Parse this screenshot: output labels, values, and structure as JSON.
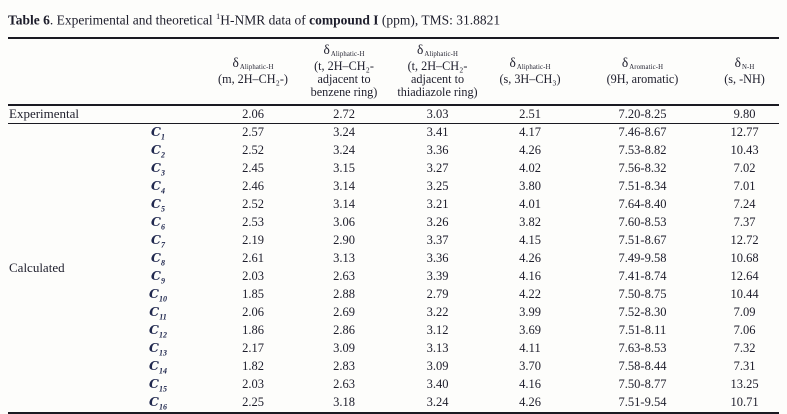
{
  "title": {
    "table_label": "Table 6",
    "segment_1": ". Experimental and theoretical ",
    "superscript": "1",
    "segment_2": "H-NMR data of ",
    "compound": "compound I",
    "segment_3": " (ppm), TMS: 31.8821"
  },
  "colors": {
    "background": "#fdfdfb",
    "text": "#1d1d2b",
    "rule": "#1a1a22",
    "conformer_glyph": "#20284e"
  },
  "table": {
    "row_group_labels": {
      "experimental": "Experimental",
      "calculated": "Calculated"
    },
    "conformer_symbol": "C",
    "columns": [
      {
        "delta": "δ",
        "delta_sub": "Aliphatic-H",
        "desc_lines": [
          "(m, 2H–CH₂-)"
        ]
      },
      {
        "delta": "δ",
        "delta_sub": "Aliphatic-H",
        "desc_lines": [
          "(t, 2H–CH₂-",
          "adjacent to",
          "benzene ring)"
        ]
      },
      {
        "delta": "δ",
        "delta_sub": "Aliphatic-H",
        "desc_lines": [
          "(t, 2H–CH₂-",
          "adjacent to",
          "thiadiazole ring)"
        ]
      },
      {
        "delta": "δ",
        "delta_sub": "Aliphatic-H",
        "desc_lines": [
          "(s, 3H–CH₃)"
        ]
      },
      {
        "delta": "δ",
        "delta_sub": "Aromatic-H",
        "desc_lines": [
          "(9H, aromatic)"
        ]
      },
      {
        "delta": "δ",
        "delta_sub": "N-H",
        "desc_lines": [
          "(s, -NH)"
        ]
      }
    ],
    "experimental_row": [
      "2.06",
      "2.72",
      "3.03",
      "2.51",
      "7.20-8.25",
      "9.80"
    ],
    "conformer_rows": [
      {
        "sub": "1",
        "values": [
          "2.57",
          "3.24",
          "3.41",
          "4.17",
          "7.46-8.67",
          "12.77"
        ]
      },
      {
        "sub": "2",
        "values": [
          "2.52",
          "3.24",
          "3.36",
          "4.26",
          "7.53-8.82",
          "10.43"
        ]
      },
      {
        "sub": "3",
        "values": [
          "2.45",
          "3.15",
          "3.27",
          "4.02",
          "7.56-8.32",
          "7.02"
        ]
      },
      {
        "sub": "4",
        "values": [
          "2.46",
          "3.14",
          "3.25",
          "3.80",
          "7.51-8.34",
          "7.01"
        ]
      },
      {
        "sub": "5",
        "values": [
          "2.52",
          "3.14",
          "3.21",
          "4.01",
          "7.64-8.40",
          "7.24"
        ]
      },
      {
        "sub": "6",
        "values": [
          "2.53",
          "3.06",
          "3.26",
          "3.82",
          "7.60-8.53",
          "7.37"
        ]
      },
      {
        "sub": "7",
        "values": [
          "2.19",
          "2.90",
          "3.37",
          "4.15",
          "7.51-8.67",
          "12.72"
        ]
      },
      {
        "sub": "8",
        "values": [
          "2.61",
          "3.13",
          "3.36",
          "4.26",
          "7.49-9.58",
          "10.68"
        ]
      },
      {
        "sub": "9",
        "values": [
          "2.03",
          "2.63",
          "3.39",
          "4.16",
          "7.41-8.74",
          "12.64"
        ]
      },
      {
        "sub": "10",
        "values": [
          "1.85",
          "2.88",
          "2.79",
          "4.22",
          "7.50-8.75",
          "10.44"
        ]
      },
      {
        "sub": "11",
        "values": [
          "2.06",
          "2.69",
          "3.22",
          "3.99",
          "7.52-8.30",
          "7.09"
        ]
      },
      {
        "sub": "12",
        "values": [
          "1.86",
          "2.86",
          "3.12",
          "3.69",
          "7.51-8.11",
          "7.06"
        ]
      },
      {
        "sub": "13",
        "values": [
          "2.17",
          "3.09",
          "3.13",
          "4.11",
          "7.63-8.53",
          "7.32"
        ]
      },
      {
        "sub": "14",
        "values": [
          "1.82",
          "2.83",
          "3.09",
          "3.70",
          "7.58-8.44",
          "7.31"
        ]
      },
      {
        "sub": "15",
        "values": [
          "2.03",
          "2.63",
          "3.40",
          "4.16",
          "7.50-8.77",
          "13.25"
        ]
      },
      {
        "sub": "16",
        "values": [
          "2.25",
          "3.18",
          "3.24",
          "4.26",
          "7.51-9.54",
          "10.71"
        ]
      }
    ]
  },
  "chart_data": {
    "type": "table",
    "title": "Table 6. Experimental and theoretical 1H-NMR data of compound I (ppm), TMS: 31.8821",
    "columns": [
      "δ Aliphatic-H (m, 2H–CH₂-)",
      "δ Aliphatic-H (t, 2H–CH₂- adjacent to benzene ring)",
      "δ Aliphatic-H (t, 2H–CH₂- adjacent to thiadiazole ring)",
      "δ Aliphatic-H (s, 3H–CH₃)",
      "δ Aromatic-H (9H, aromatic)",
      "δ N-H (s, -NH)"
    ],
    "rows": [
      {
        "group": "Experimental",
        "label": "",
        "values": [
          "2.06",
          "2.72",
          "3.03",
          "2.51",
          "7.20-8.25",
          "9.80"
        ]
      },
      {
        "group": "Calculated",
        "label": "C1",
        "values": [
          "2.57",
          "3.24",
          "3.41",
          "4.17",
          "7.46-8.67",
          "12.77"
        ]
      },
      {
        "group": "Calculated",
        "label": "C2",
        "values": [
          "2.52",
          "3.24",
          "3.36",
          "4.26",
          "7.53-8.82",
          "10.43"
        ]
      },
      {
        "group": "Calculated",
        "label": "C3",
        "values": [
          "2.45",
          "3.15",
          "3.27",
          "4.02",
          "7.56-8.32",
          "7.02"
        ]
      },
      {
        "group": "Calculated",
        "label": "C4",
        "values": [
          "2.46",
          "3.14",
          "3.25",
          "3.80",
          "7.51-8.34",
          "7.01"
        ]
      },
      {
        "group": "Calculated",
        "label": "C5",
        "values": [
          "2.52",
          "3.14",
          "3.21",
          "4.01",
          "7.64-8.40",
          "7.24"
        ]
      },
      {
        "group": "Calculated",
        "label": "C6",
        "values": [
          "2.53",
          "3.06",
          "3.26",
          "3.82",
          "7.60-8.53",
          "7.37"
        ]
      },
      {
        "group": "Calculated",
        "label": "C7",
        "values": [
          "2.19",
          "2.90",
          "3.37",
          "4.15",
          "7.51-8.67",
          "12.72"
        ]
      },
      {
        "group": "Calculated",
        "label": "C8",
        "values": [
          "2.61",
          "3.13",
          "3.36",
          "4.26",
          "7.49-9.58",
          "10.68"
        ]
      },
      {
        "group": "Calculated",
        "label": "C9",
        "values": [
          "2.03",
          "2.63",
          "3.39",
          "4.16",
          "7.41-8.74",
          "12.64"
        ]
      },
      {
        "group": "Calculated",
        "label": "C10",
        "values": [
          "1.85",
          "2.88",
          "2.79",
          "4.22",
          "7.50-8.75",
          "10.44"
        ]
      },
      {
        "group": "Calculated",
        "label": "C11",
        "values": [
          "2.06",
          "2.69",
          "3.22",
          "3.99",
          "7.52-8.30",
          "7.09"
        ]
      },
      {
        "group": "Calculated",
        "label": "C12",
        "values": [
          "1.86",
          "2.86",
          "3.12",
          "3.69",
          "7.51-8.11",
          "7.06"
        ]
      },
      {
        "group": "Calculated",
        "label": "C13",
        "values": [
          "2.17",
          "3.09",
          "3.13",
          "4.11",
          "7.63-8.53",
          "7.32"
        ]
      },
      {
        "group": "Calculated",
        "label": "C14",
        "values": [
          "1.82",
          "2.83",
          "3.09",
          "3.70",
          "7.58-8.44",
          "7.31"
        ]
      },
      {
        "group": "Calculated",
        "label": "C15",
        "values": [
          "2.03",
          "2.63",
          "3.40",
          "4.16",
          "7.50-8.77",
          "13.25"
        ]
      },
      {
        "group": "Calculated",
        "label": "C16",
        "values": [
          "2.25",
          "3.18",
          "3.24",
          "4.26",
          "7.51-9.54",
          "10.71"
        ]
      }
    ]
  }
}
